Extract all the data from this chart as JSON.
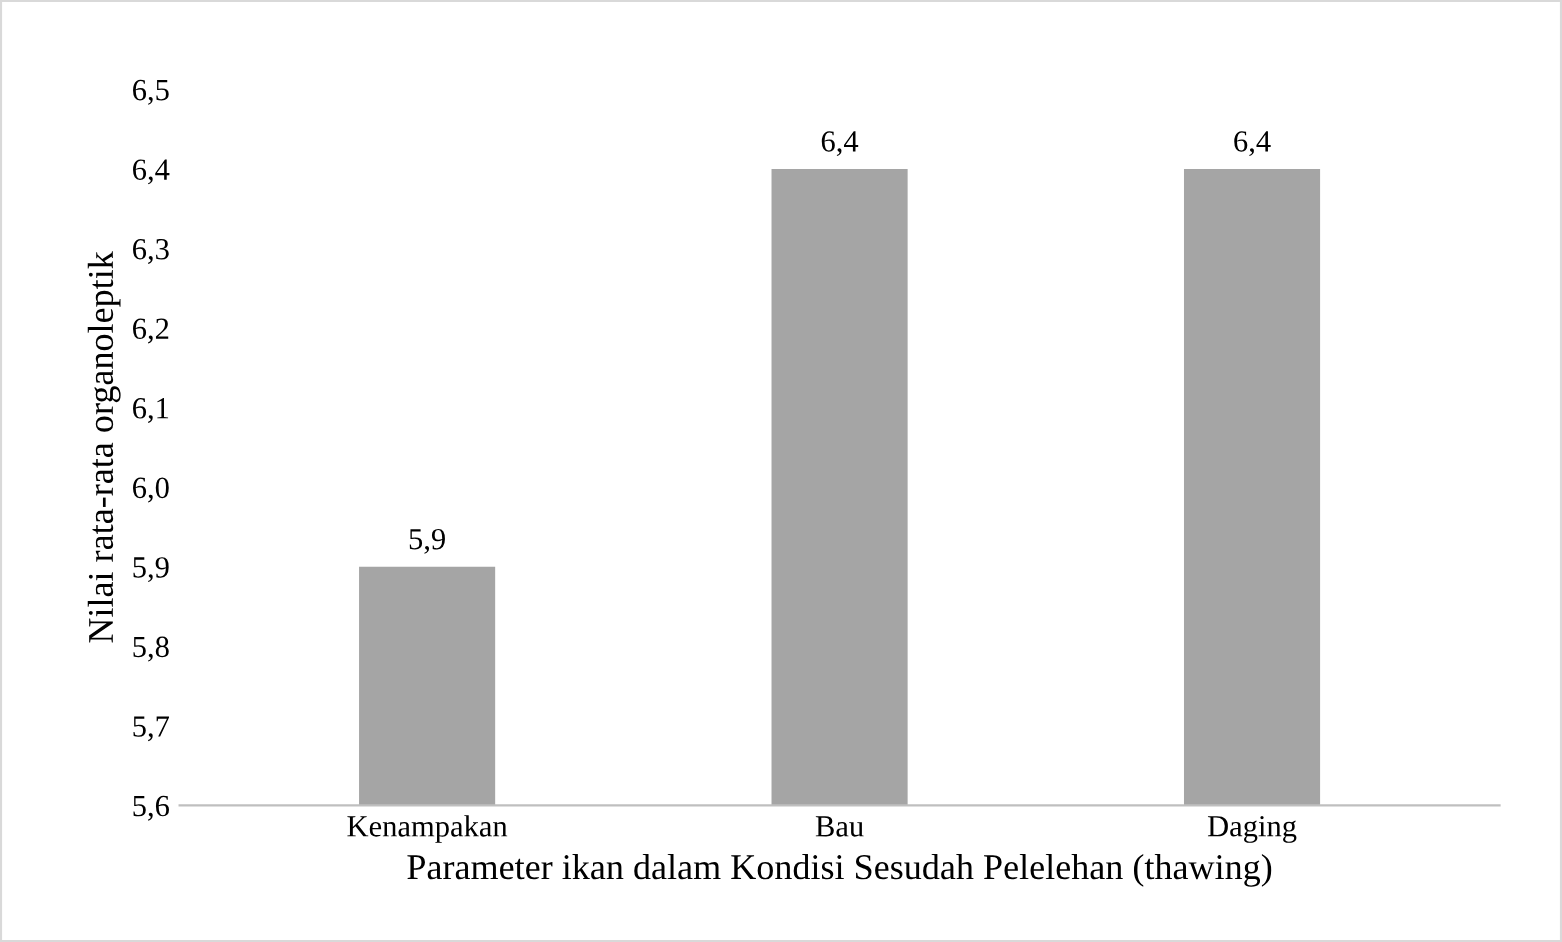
{
  "chart_data": {
    "type": "bar",
    "categories": [
      "Kenampakan",
      "Bau",
      "Daging"
    ],
    "values": [
      5.9,
      6.4,
      6.4
    ],
    "color": "#a5a5a5",
    "value_labels": [
      "5,9",
      "6,4",
      "6,4"
    ],
    "ylim": [
      5.6,
      6.5
    ],
    "yticks": [
      {
        "value": 5.6,
        "label": "5,6"
      },
      {
        "value": 5.7,
        "label": "5,7"
      },
      {
        "value": 5.8,
        "label": "5,8"
      },
      {
        "value": 5.9,
        "label": "5,9"
      },
      {
        "value": 6.0,
        "label": "6,0"
      },
      {
        "value": 6.1,
        "label": "6,1"
      },
      {
        "value": 6.2,
        "label": "6,2"
      },
      {
        "value": 6.3,
        "label": "6,3"
      },
      {
        "value": 6.4,
        "label": "6,4"
      },
      {
        "value": 6.5,
        "label": "6,5"
      }
    ],
    "xlabel": "Parameter ikan dalam Kondisi Sesudah Pelelehan (thawing)",
    "ylabel": "Nilai rata-rata organoleptik",
    "grid": false
  }
}
